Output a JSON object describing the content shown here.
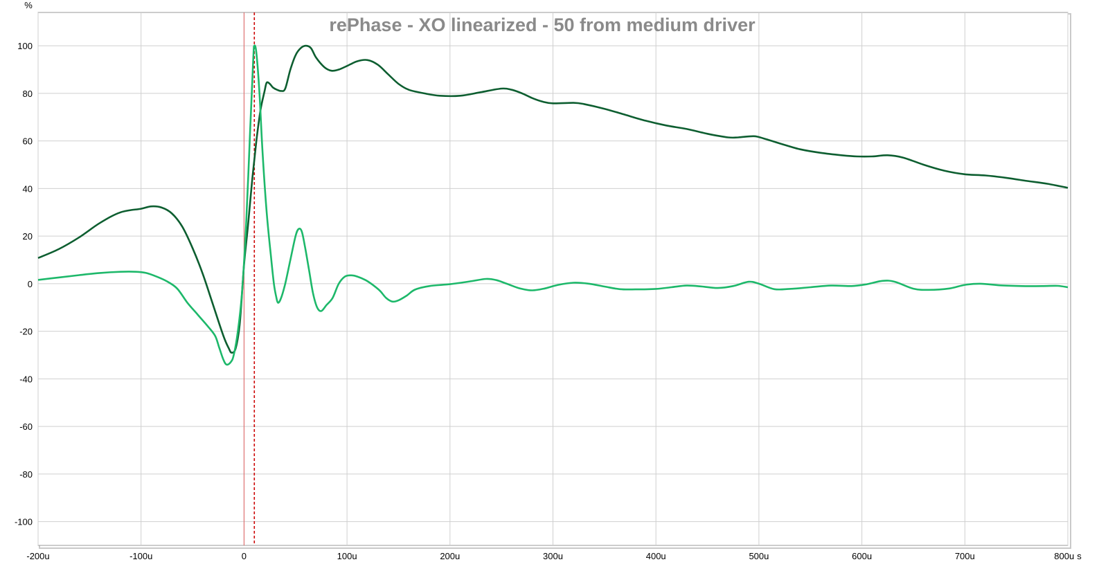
{
  "chart_data": {
    "type": "line",
    "title": "rePhase - XO linearized - 50 from medium driver",
    "y_unit_label": "%",
    "x_unit_label": "s",
    "xlim": [
      -200,
      800
    ],
    "ylim": [
      -110,
      114
    ],
    "grid": true,
    "x_ticks": [
      {
        "value": -200,
        "label": "-200u"
      },
      {
        "value": -100,
        "label": "-100u"
      },
      {
        "value": 0,
        "label": "0"
      },
      {
        "value": 100,
        "label": "100u"
      },
      {
        "value": 200,
        "label": "200u"
      },
      {
        "value": 300,
        "label": "300u"
      },
      {
        "value": 400,
        "label": "400u"
      },
      {
        "value": 500,
        "label": "500u"
      },
      {
        "value": 600,
        "label": "600u"
      },
      {
        "value": 700,
        "label": "700u"
      },
      {
        "value": 800,
        "label": "800u"
      }
    ],
    "y_ticks": [
      {
        "value": 100,
        "label": "100"
      },
      {
        "value": 80,
        "label": "80"
      },
      {
        "value": 60,
        "label": "60"
      },
      {
        "value": 40,
        "label": "40"
      },
      {
        "value": 20,
        "label": "20"
      },
      {
        "value": 0,
        "label": "0"
      },
      {
        "value": -20,
        "label": "-20"
      },
      {
        "value": -40,
        "label": "-40"
      },
      {
        "value": -60,
        "label": "-60"
      },
      {
        "value": -80,
        "label": "-80"
      },
      {
        "value": -100,
        "label": "-100"
      }
    ],
    "markers": [
      {
        "x": 0,
        "color": "#e06060",
        "style": "solid"
      },
      {
        "x": 10,
        "color": "#cc0000",
        "style": "dashed"
      }
    ],
    "series": [
      {
        "color": "#0d5e30",
        "points": [
          [
            -200,
            10.8
          ],
          [
            -180,
            14.5
          ],
          [
            -160,
            19.5
          ],
          [
            -140,
            25.5
          ],
          [
            -120,
            30
          ],
          [
            -100,
            31.5
          ],
          [
            -90,
            32.5
          ],
          [
            -80,
            32
          ],
          [
            -70,
            29.5
          ],
          [
            -60,
            24
          ],
          [
            -50,
            15
          ],
          [
            -40,
            4
          ],
          [
            -30,
            -9
          ],
          [
            -20,
            -22
          ],
          [
            -15,
            -27
          ],
          [
            -12,
            -29
          ],
          [
            -8,
            -27
          ],
          [
            -4,
            -16
          ],
          [
            0,
            8
          ],
          [
            4,
            25
          ],
          [
            8,
            44
          ],
          [
            12,
            60
          ],
          [
            16,
            73
          ],
          [
            20,
            81
          ],
          [
            22,
            84.5
          ],
          [
            25,
            84
          ],
          [
            28,
            82.5
          ],
          [
            32,
            81.5
          ],
          [
            36,
            81
          ],
          [
            40,
            82
          ],
          [
            45,
            90
          ],
          [
            50,
            96
          ],
          [
            55,
            99
          ],
          [
            60,
            100
          ],
          [
            65,
            99
          ],
          [
            70,
            95
          ],
          [
            78,
            91
          ],
          [
            85,
            89.5
          ],
          [
            92,
            90
          ],
          [
            100,
            91.5
          ],
          [
            110,
            93.5
          ],
          [
            120,
            94
          ],
          [
            130,
            92
          ],
          [
            140,
            88
          ],
          [
            150,
            84
          ],
          [
            160,
            81.5
          ],
          [
            175,
            80
          ],
          [
            190,
            79
          ],
          [
            210,
            79
          ],
          [
            230,
            80.5
          ],
          [
            250,
            82
          ],
          [
            260,
            81.5
          ],
          [
            270,
            80
          ],
          [
            280,
            78
          ],
          [
            290,
            76.5
          ],
          [
            300,
            75.8
          ],
          [
            320,
            76
          ],
          [
            330,
            75.5
          ],
          [
            350,
            73.5
          ],
          [
            370,
            71
          ],
          [
            390,
            68.5
          ],
          [
            410,
            66.5
          ],
          [
            430,
            65
          ],
          [
            450,
            63
          ],
          [
            470,
            61.5
          ],
          [
            480,
            61.5
          ],
          [
            495,
            62
          ],
          [
            505,
            61
          ],
          [
            520,
            59
          ],
          [
            540,
            56.5
          ],
          [
            560,
            55
          ],
          [
            580,
            54
          ],
          [
            595,
            53.5
          ],
          [
            610,
            53.5
          ],
          [
            625,
            54
          ],
          [
            640,
            53
          ],
          [
            660,
            50
          ],
          [
            680,
            47.5
          ],
          [
            700,
            46
          ],
          [
            720,
            45.5
          ],
          [
            740,
            44.5
          ],
          [
            760,
            43.2
          ],
          [
            780,
            42
          ],
          [
            800,
            40.3
          ]
        ]
      },
      {
        "color": "#1db86a",
        "points": [
          [
            -200,
            1.6
          ],
          [
            -180,
            2.6
          ],
          [
            -160,
            3.6
          ],
          [
            -140,
            4.5
          ],
          [
            -120,
            5
          ],
          [
            -105,
            5
          ],
          [
            -95,
            4.5
          ],
          [
            -85,
            3
          ],
          [
            -75,
            1
          ],
          [
            -65,
            -2
          ],
          [
            -55,
            -8
          ],
          [
            -45,
            -13
          ],
          [
            -35,
            -18
          ],
          [
            -28,
            -22
          ],
          [
            -24,
            -27
          ],
          [
            -20,
            -32
          ],
          [
            -17,
            -34
          ],
          [
            -13,
            -33
          ],
          [
            -10,
            -30
          ],
          [
            -6,
            -20
          ],
          [
            -2,
            -4
          ],
          [
            2,
            25
          ],
          [
            6,
            65
          ],
          [
            9,
            95
          ],
          [
            10,
            100
          ],
          [
            12,
            97
          ],
          [
            15,
            80
          ],
          [
            18,
            55
          ],
          [
            22,
            30
          ],
          [
            26,
            12
          ],
          [
            29,
            0
          ],
          [
            31,
            -5
          ],
          [
            33,
            -8
          ],
          [
            36,
            -6
          ],
          [
            40,
            0
          ],
          [
            45,
            10
          ],
          [
            50,
            20
          ],
          [
            53,
            23
          ],
          [
            56,
            22
          ],
          [
            59,
            16
          ],
          [
            63,
            6
          ],
          [
            67,
            -4
          ],
          [
            71,
            -10
          ],
          [
            75,
            -11.5
          ],
          [
            80,
            -9
          ],
          [
            86,
            -6
          ],
          [
            92,
            0
          ],
          [
            98,
            3
          ],
          [
            104,
            3.5
          ],
          [
            110,
            3
          ],
          [
            118,
            1.5
          ],
          [
            125,
            -0.5
          ],
          [
            132,
            -3
          ],
          [
            138,
            -6
          ],
          [
            144,
            -7.5
          ],
          [
            150,
            -7
          ],
          [
            158,
            -5
          ],
          [
            166,
            -2.5
          ],
          [
            180,
            -1
          ],
          [
            200,
            -0.2
          ],
          [
            220,
            1
          ],
          [
            235,
            2
          ],
          [
            245,
            1.5
          ],
          [
            255,
            0
          ],
          [
            268,
            -2
          ],
          [
            280,
            -2.8
          ],
          [
            292,
            -2
          ],
          [
            305,
            -0.5
          ],
          [
            320,
            0.4
          ],
          [
            335,
            0
          ],
          [
            350,
            -1.2
          ],
          [
            365,
            -2.3
          ],
          [
            380,
            -2.4
          ],
          [
            400,
            -2.2
          ],
          [
            415,
            -1.5
          ],
          [
            430,
            -0.8
          ],
          [
            445,
            -1.2
          ],
          [
            460,
            -1.8
          ],
          [
            475,
            -1
          ],
          [
            490,
            0.8
          ],
          [
            500,
            0
          ],
          [
            515,
            -2.3
          ],
          [
            530,
            -2.2
          ],
          [
            550,
            -1.5
          ],
          [
            570,
            -0.8
          ],
          [
            590,
            -1
          ],
          [
            605,
            -0.2
          ],
          [
            620,
            1.2
          ],
          [
            632,
            0.8
          ],
          [
            650,
            -2.1
          ],
          [
            665,
            -2.6
          ],
          [
            685,
            -2
          ],
          [
            700,
            -0.5
          ],
          [
            715,
            0
          ],
          [
            735,
            -0.7
          ],
          [
            755,
            -1
          ],
          [
            775,
            -1
          ],
          [
            790,
            -0.9
          ],
          [
            800,
            -1.5
          ]
        ]
      }
    ]
  }
}
